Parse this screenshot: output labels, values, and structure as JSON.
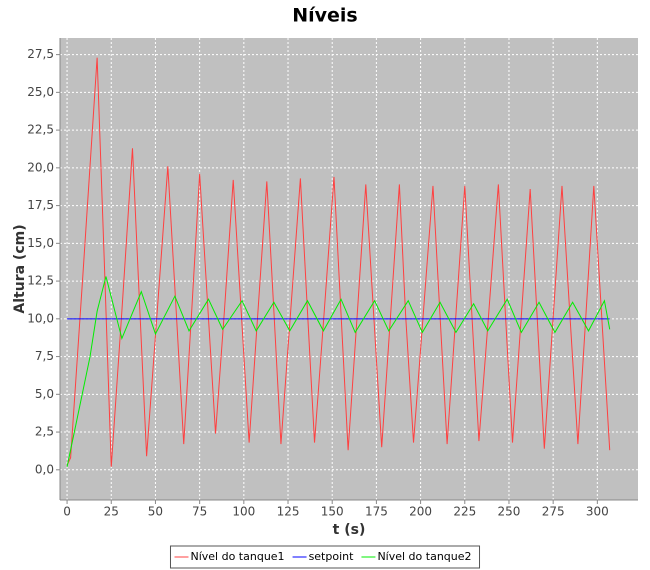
{
  "chart_data": {
    "type": "line",
    "title": "Níveis",
    "x_label": "t (s)",
    "y_label": "Altura (cm)",
    "xlim": [
      -4,
      323
    ],
    "ylim": [
      -2,
      28.6
    ],
    "xticks": [
      0,
      25,
      50,
      75,
      100,
      125,
      150,
      175,
      200,
      225,
      250,
      275,
      300
    ],
    "yticks": [
      {
        "value": 0,
        "label": "0,0"
      },
      {
        "value": 2.5,
        "label": "2,5"
      },
      {
        "value": 5,
        "label": "5,0"
      },
      {
        "value": 7.5,
        "label": "7,5"
      },
      {
        "value": 10,
        "label": "10,0"
      },
      {
        "value": 12.5,
        "label": "12,5"
      },
      {
        "value": 15,
        "label": "15,0"
      },
      {
        "value": 17.5,
        "label": "17,5"
      },
      {
        "value": 20,
        "label": "20,0"
      },
      {
        "value": 22.5,
        "label": "22,5"
      },
      {
        "value": 25,
        "label": "25,0"
      },
      {
        "value": 27.5,
        "label": "27,5"
      }
    ],
    "grid": true,
    "legend": "bottom",
    "series": [
      {
        "name": "Nível do tanque1",
        "color": "#ff4040",
        "x": [
          0,
          2,
          9,
          17,
          21,
          25,
          31,
          37,
          41,
          45,
          51,
          57,
          61.5,
          66,
          70.5,
          75,
          79.5,
          84,
          89,
          94,
          98.5,
          103,
          108,
          113,
          117,
          121,
          126.5,
          132,
          136,
          140,
          145.5,
          151,
          155,
          159,
          164,
          169,
          173.5,
          178,
          183,
          188,
          191.5,
          196,
          201.5,
          207,
          211,
          215,
          220,
          225,
          229,
          233,
          238.5,
          244,
          248,
          252,
          257,
          262,
          266,
          270,
          275,
          280,
          284.5,
          289,
          293.5,
          298,
          302.5,
          307
        ],
        "values": [
          0.3,
          0.8,
          13,
          27.3,
          14,
          0.2,
          10.5,
          21.3,
          11,
          0.9,
          10.5,
          20.1,
          11,
          1.7,
          10.5,
          19.6,
          11,
          2.4,
          10.5,
          19.2,
          10.5,
          1.8,
          10.5,
          19.1,
          10.5,
          1.7,
          10.5,
          19.3,
          10.5,
          1.8,
          10.5,
          19.4,
          10.3,
          1.3,
          10,
          18.9,
          10.2,
          1.5,
          10.2,
          18.9,
          10.3,
          1.8,
          10.3,
          18.8,
          10.2,
          1.7,
          10.3,
          18.8,
          10.3,
          1.9,
          10.3,
          18.9,
          10.3,
          1.8,
          10.2,
          18.6,
          10,
          1.4,
          10.1,
          18.8,
          10.2,
          1.7,
          10.2,
          18.8,
          10.1,
          1.3
        ]
      },
      {
        "name": "setpoint",
        "color": "#0000ff",
        "x": [
          0,
          307
        ],
        "values": [
          10,
          10
        ]
      },
      {
        "name": "Nível do tanque2",
        "color": "#00ee00",
        "x": [
          0,
          5,
          13,
          17,
          22,
          31,
          42,
          50,
          61,
          69,
          80,
          88,
          99,
          107,
          117,
          126,
          136,
          145,
          155,
          163,
          174,
          182,
          193,
          201,
          211,
          220,
          230,
          238,
          249,
          257,
          267,
          276,
          286,
          295,
          304,
          307
        ],
        "values": [
          0.2,
          3,
          7.5,
          10.5,
          12.8,
          8.7,
          11.8,
          9,
          11.5,
          9.2,
          11.3,
          9.3,
          11.2,
          9.2,
          11.1,
          9.2,
          11.2,
          9.2,
          11.3,
          9.1,
          11.2,
          9.2,
          11.2,
          9.1,
          11.1,
          9.1,
          11,
          9.2,
          11.3,
          9.1,
          11.1,
          9.1,
          11.1,
          9.2,
          11.2,
          9.3
        ]
      }
    ]
  }
}
